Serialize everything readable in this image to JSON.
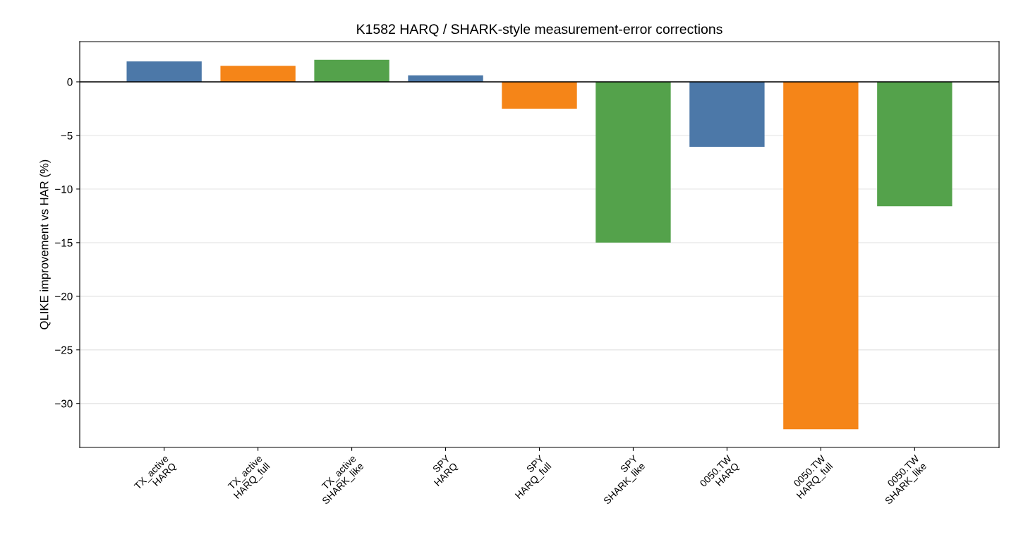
{
  "chart_data": {
    "type": "bar",
    "title": "K1582 HARQ / SHARK-style measurement-error corrections",
    "ylabel": "QLIKE improvement vs HAR (%)",
    "categories": [
      "TX_active\nHARQ",
      "TX_active\nHARQ_full",
      "TX_active\nSHARK_like",
      "SPY\nHARQ",
      "SPY\nHARQ_full",
      "SPY\nSHARK_like",
      "0050.TW\nHARQ",
      "0050.TW\nHARQ_full",
      "0050.TW\nSHARK_like"
    ],
    "values": [
      1.9,
      1.5,
      2.05,
      0.6,
      -2.5,
      -15.0,
      -6.05,
      -32.4,
      -11.6
    ],
    "colors": [
      "#4c78a8",
      "#f58518",
      "#54a24b",
      "#4c78a8",
      "#f58518",
      "#54a24b",
      "#4c78a8",
      "#f58518",
      "#54a24b"
    ],
    "ylim": [
      -34.1,
      3.75
    ],
    "yticks": [
      {
        "value": -30,
        "label": "−30"
      },
      {
        "value": -25,
        "label": "−25"
      },
      {
        "value": -20,
        "label": "−20"
      },
      {
        "value": -15,
        "label": "−15"
      },
      {
        "value": -10,
        "label": "−10"
      },
      {
        "value": -5,
        "label": "−5"
      },
      0
    ],
    "ref_lines": [
      {
        "axis": "y",
        "value": 0,
        "color": "#000000"
      }
    ],
    "grid": "y",
    "legend": false
  }
}
